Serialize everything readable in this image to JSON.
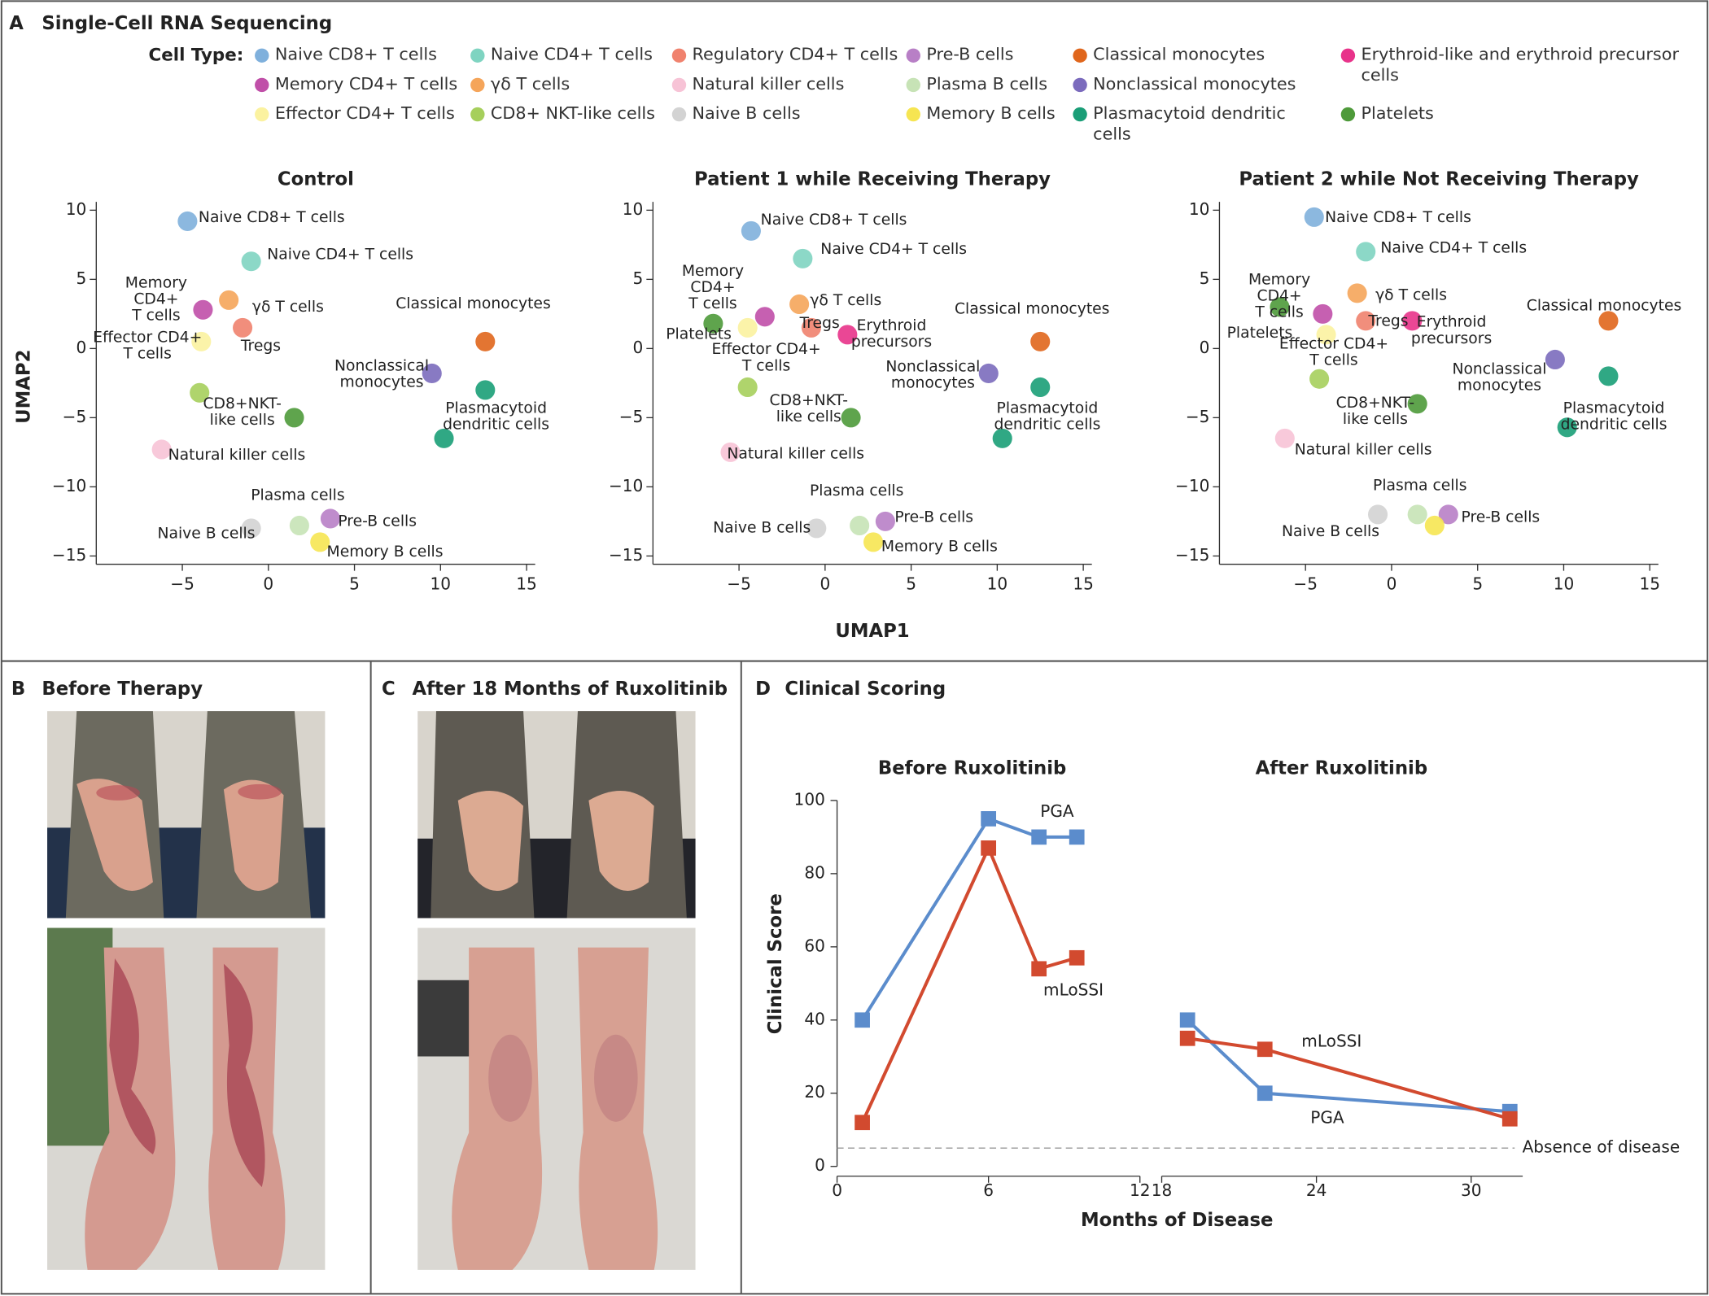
{
  "panels": [
    {
      "letter": "A",
      "title": "Single-Cell RNA Sequencing"
    },
    {
      "letter": "B",
      "title": "Before Therapy"
    },
    {
      "letter": "C",
      "title": "After 18 Months of Ruxolitinib"
    },
    {
      "letter": "D",
      "title": "Clinical Scoring"
    }
  ],
  "legend_title": "Cell Type:",
  "chart_data": [
    {
      "type": "scatter",
      "title": "Control",
      "ylabel": "UMAP2",
      "xlim": [
        -10,
        15.5
      ],
      "ylim": [
        -15.6,
        10.6
      ],
      "xticks": [
        {
          "value": -5,
          "label": "−5"
        },
        0,
        5,
        10,
        15
      ],
      "yticks": [
        {
          "value": -15,
          "label": "−15"
        },
        {
          "value": -10,
          "label": "−10"
        },
        {
          "value": -5,
          "label": "−5"
        },
        0,
        5,
        10
      ],
      "series": [
        {
          "name": "Naive CD8+ T cells",
          "color": "#7fb0dc",
          "x": [
            -4.7
          ],
          "y": [
            9.2
          ]
        },
        {
          "name": "Naive CD4+ T cells",
          "color": "#7fd4c1",
          "x": [
            -1
          ],
          "y": [
            6.3
          ]
        },
        {
          "name": "Regulatory CD4+ T cells",
          "color": "#f0826e",
          "x": [
            -1.5
          ],
          "y": [
            1.5
          ]
        },
        {
          "name": "Pre-B cells",
          "color": "#b87fc6",
          "x": [
            3.6
          ],
          "y": [
            -12.3
          ]
        },
        {
          "name": "Classical monocytes",
          "color": "#e0661c",
          "x": [
            12.6
          ],
          "y": [
            0.5
          ]
        },
        {
          "name": "Erythroid-like and erythroid precursor cells",
          "color": "#e8338a",
          "x": [],
          "y": []
        },
        {
          "name": "Memory CD4+ T cells",
          "color": "#c04fa8",
          "x": [
            -3.8
          ],
          "y": [
            2.8
          ]
        },
        {
          "name": "γδ T cells",
          "color": "#f5a55a",
          "x": [
            -2.3
          ],
          "y": [
            3.5
          ]
        },
        {
          "name": "Natural killer cells",
          "color": "#f7c3d6",
          "x": [
            -6.2
          ],
          "y": [
            -7.3
          ]
        },
        {
          "name": "Plasma B cells",
          "color": "#c7e3b6",
          "x": [
            1.8
          ],
          "y": [
            -12.8
          ]
        },
        {
          "name": "Nonclassical monocytes",
          "color": "#7b6bbd",
          "x": [
            9.5
          ],
          "y": [
            -1.8
          ]
        },
        {
          "name": "Effector CD4+ T cells",
          "color": "#fbf2a0",
          "x": [
            -3.9
          ],
          "y": [
            0.5
          ]
        },
        {
          "name": "CD8+ NKT-like cells",
          "color": "#a6cf5c",
          "x": [
            -4
          ],
          "y": [
            -3.2
          ]
        },
        {
          "name": "Naive B cells",
          "color": "#d3d3d3",
          "x": [
            -1
          ],
          "y": [
            -13
          ]
        },
        {
          "name": "Memory B cells",
          "color": "#f6e552",
          "x": [
            3
          ],
          "y": [
            -14
          ]
        },
        {
          "name": "Plasmacytoid dendritic cells",
          "color": "#1a9e77",
          "x": [
            12.6,
            10.2
          ],
          "y": [
            -3,
            -6.5
          ]
        },
        {
          "name": "Platelets",
          "color": "#4e9a3a",
          "x": [
            1.5
          ],
          "y": [
            -5
          ]
        }
      ],
      "annotations": [
        [
          "Naive CD8+ T cells"
        ],
        [
          "Naive CD4+ T cells"
        ],
        [
          "Memory",
          "CD4+",
          "T cells"
        ],
        [
          "γδ T cells"
        ],
        [
          "Tregs"
        ],
        [
          "Effector CD4+",
          "T cells"
        ],
        [
          "Classical monocytes"
        ],
        [
          "Nonclassical",
          "monocytes"
        ],
        [
          "Plasmacytoid",
          "dendritic cells"
        ],
        [
          "CD8+NKT-",
          "like cells"
        ],
        [
          "Natural killer cells"
        ],
        [
          "Plasma cells"
        ],
        [
          "Naive B cells"
        ],
        [
          "Pre-B cells"
        ],
        [
          "Memory B cells"
        ]
      ]
    },
    {
      "type": "scatter",
      "title": "Patient 1 while Receiving Therapy",
      "xlabel": "UMAP1",
      "xlim": [
        -10,
        15.5
      ],
      "ylim": [
        -15.6,
        10.6
      ],
      "xticks": [
        {
          "value": -5,
          "label": "−5"
        },
        0,
        5,
        10,
        15
      ],
      "yticks": [
        {
          "value": -15,
          "label": "−15"
        },
        {
          "value": -10,
          "label": "−10"
        },
        {
          "value": -5,
          "label": "−5"
        },
        0,
        5,
        10
      ],
      "series": [
        {
          "color": "#7fb0dc",
          "x": [
            -4.3
          ],
          "y": [
            8.5
          ]
        },
        {
          "color": "#7fd4c1",
          "x": [
            -1.3
          ],
          "y": [
            6.5
          ]
        },
        {
          "color": "#f0826e",
          "x": [
            -0.8
          ],
          "y": [
            1.5
          ]
        },
        {
          "color": "#b87fc6",
          "x": [
            3.5
          ],
          "y": [
            -12.5
          ]
        },
        {
          "color": "#e0661c",
          "x": [
            12.5
          ],
          "y": [
            0.5
          ]
        },
        {
          "color": "#e8338a",
          "x": [
            1.3
          ],
          "y": [
            1
          ]
        },
        {
          "color": "#c04fa8",
          "x": [
            -3.5
          ],
          "y": [
            2.3
          ]
        },
        {
          "color": "#f5a55a",
          "x": [
            -1.5
          ],
          "y": [
            3.2
          ]
        },
        {
          "color": "#f7c3d6",
          "x": [
            -5.5
          ],
          "y": [
            -7.5
          ]
        },
        {
          "color": "#c7e3b6",
          "x": [
            2
          ],
          "y": [
            -12.8
          ]
        },
        {
          "color": "#7b6bbd",
          "x": [
            9.5
          ],
          "y": [
            -1.8
          ]
        },
        {
          "color": "#fbf2a0",
          "x": [
            -4.5
          ],
          "y": [
            1.5
          ]
        },
        {
          "color": "#a6cf5c",
          "x": [
            -4.5
          ],
          "y": [
            -2.8
          ]
        },
        {
          "color": "#d3d3d3",
          "x": [
            -0.5
          ],
          "y": [
            -13
          ]
        },
        {
          "color": "#f6e552",
          "x": [
            2.8
          ],
          "y": [
            -14
          ]
        },
        {
          "color": "#1a9e77",
          "x": [
            12.5,
            10.3
          ],
          "y": [
            -2.8,
            -6.5
          ]
        },
        {
          "color": "#4e9a3a",
          "x": [
            -6.5,
            1.5
          ],
          "y": [
            1.8,
            -5
          ]
        }
      ],
      "annotations": [
        [
          "Naive CD8+ T cells"
        ],
        [
          "Naive CD4+ T cells"
        ],
        [
          "Memory",
          "CD4+",
          "T cells"
        ],
        [
          "γδ T cells"
        ],
        [
          "Tregs"
        ],
        [
          "Erythroid",
          "precursors"
        ],
        [
          "Platelets"
        ],
        [
          "Effector CD4+",
          "T cells"
        ],
        [
          "Classical monocytes"
        ],
        [
          "Nonclassical",
          "monocytes"
        ],
        [
          "Plasmacytoid",
          "dendritic cells"
        ],
        [
          "CD8+NKT-",
          "like cells"
        ],
        [
          "Natural killer cells"
        ],
        [
          "Plasma cells"
        ],
        [
          "Naive B cells"
        ],
        [
          "Pre-B cells"
        ],
        [
          "Memory B cells"
        ]
      ]
    },
    {
      "type": "scatter",
      "title": "Patient 2 while Not Receiving Therapy",
      "xlim": [
        -10,
        15.5
      ],
      "ylim": [
        -15.6,
        10.6
      ],
      "xticks": [
        {
          "value": -5,
          "label": "−5"
        },
        0,
        5,
        10,
        15
      ],
      "yticks": [
        {
          "value": -15,
          "label": "−15"
        },
        {
          "value": -10,
          "label": "−10"
        },
        {
          "value": -5,
          "label": "−5"
        },
        0,
        5,
        10
      ],
      "series": [
        {
          "color": "#7fb0dc",
          "x": [
            -4.5
          ],
          "y": [
            9.5
          ]
        },
        {
          "color": "#7fd4c1",
          "x": [
            -1.5
          ],
          "y": [
            7
          ]
        },
        {
          "color": "#f0826e",
          "x": [
            -1.5
          ],
          "y": [
            2
          ]
        },
        {
          "color": "#b87fc6",
          "x": [
            3.3
          ],
          "y": [
            -12
          ]
        },
        {
          "color": "#e0661c",
          "x": [
            12.6
          ],
          "y": [
            2
          ]
        },
        {
          "color": "#e8338a",
          "x": [
            1.2
          ],
          "y": [
            2
          ]
        },
        {
          "color": "#c04fa8",
          "x": [
            -4
          ],
          "y": [
            2.5
          ]
        },
        {
          "color": "#f5a55a",
          "x": [
            -2
          ],
          "y": [
            4
          ]
        },
        {
          "color": "#f7c3d6",
          "x": [
            -6.2
          ],
          "y": [
            -6.5
          ]
        },
        {
          "color": "#c7e3b6",
          "x": [
            1.5
          ],
          "y": [
            -12
          ]
        },
        {
          "color": "#7b6bbd",
          "x": [
            9.5
          ],
          "y": [
            -0.8
          ]
        },
        {
          "color": "#fbf2a0",
          "x": [
            -3.8
          ],
          "y": [
            1
          ]
        },
        {
          "color": "#a6cf5c",
          "x": [
            -4.2
          ],
          "y": [
            -2.2
          ]
        },
        {
          "color": "#d3d3d3",
          "x": [
            -0.8
          ],
          "y": [
            -12
          ]
        },
        {
          "color": "#f6e552",
          "x": [
            2.5
          ],
          "y": [
            -12.8
          ]
        },
        {
          "color": "#1a9e77",
          "x": [
            12.6,
            10.2
          ],
          "y": [
            -2,
            -5.7
          ]
        },
        {
          "color": "#4e9a3a",
          "x": [
            -6.5,
            1.5
          ],
          "y": [
            3,
            -4
          ]
        }
      ],
      "annotations": [
        [
          "Naive CD8+ T cells"
        ],
        [
          "Naive CD4+ T cells"
        ],
        [
          "Memory",
          "CD4+",
          "T cells"
        ],
        [
          "γδ T cells"
        ],
        [
          "Tregs"
        ],
        [
          "Erythroid",
          "precursors"
        ],
        [
          "Platelets"
        ],
        [
          "Effector CD4+",
          "T cells"
        ],
        [
          "Classical monocytes"
        ],
        [
          "Nonclassical",
          "monocytes"
        ],
        [
          "Plasmacytoid",
          "dendritic cells"
        ],
        [
          "CD8+NKT-",
          "like cells"
        ],
        [
          "Natural killer cells"
        ],
        [
          "Plasma cells"
        ],
        [
          "Naive B cells"
        ],
        [
          "Pre-B cells"
        ]
      ]
    },
    {
      "type": "line",
      "xlabel": "Months of Disease",
      "ylabel": "Clinical Score",
      "segment_titles": [
        "Before Ruxolitinib",
        "After Ruxolitinib"
      ],
      "xlim": [
        0,
        32
      ],
      "xbreak": [
        12,
        18
      ],
      "xticks": [
        0,
        6,
        12,
        18,
        24,
        30
      ],
      "ylim": [
        0,
        100
      ],
      "yticks": [
        0,
        20,
        40,
        60,
        80,
        100
      ],
      "reference": {
        "value": 5,
        "label": "Absence of disease"
      },
      "series": [
        {
          "name": "PGA",
          "color": "#5b8ccc",
          "x": [
            1,
            6,
            8,
            9.5
          ],
          "values": [
            40,
            95,
            90,
            90
          ]
        },
        {
          "name": "mLoSSI",
          "color": "#d24a2f",
          "x": [
            1,
            6,
            8,
            9.5
          ],
          "values": [
            12,
            87,
            54,
            57
          ]
        },
        {
          "name": "PGA",
          "color": "#5b8ccc",
          "x": [
            19,
            22,
            31.5
          ],
          "values": [
            40,
            20,
            15
          ]
        },
        {
          "name": "mLoSSI",
          "color": "#d24a2f",
          "x": [
            19,
            22,
            31.5
          ],
          "values": [
            35,
            32,
            13
          ]
        }
      ]
    }
  ]
}
